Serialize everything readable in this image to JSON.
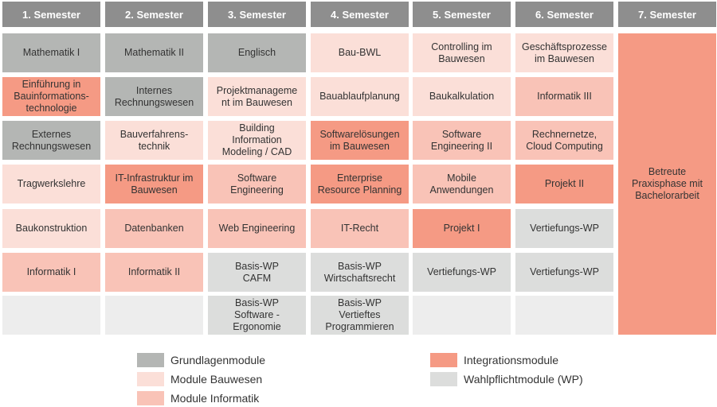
{
  "colors": {
    "Grundlagen": "#b4b6b4",
    "Bauwesen": "#fbdfd8",
    "Informatik": "#f9c3b7",
    "Integration": "#f59a84",
    "Wahlpflicht": "#dcdddc",
    "Empty": "#ededed",
    "Header": "#8e8e8e"
  },
  "semesters": [
    "1. Semester",
    "2. Semester",
    "3. Semester",
    "4. Semester",
    "5. Semester",
    "6. Semester",
    "7. Semester"
  ],
  "columns": [
    [
      {
        "text": "Mathematik I",
        "type": "Grundlagen"
      },
      {
        "text": "Einführung in\nBauinformations-\ntechnologie",
        "type": "Integration"
      },
      {
        "text": "Externes\nRechnungswesen",
        "type": "Grundlagen"
      },
      {
        "text": "Tragwerkslehre",
        "type": "Bauwesen"
      },
      {
        "text": "Baukonstruktion",
        "type": "Bauwesen"
      },
      {
        "text": "Informatik I",
        "type": "Informatik"
      },
      {
        "text": "",
        "type": "Empty"
      }
    ],
    [
      {
        "text": "Mathematik II",
        "type": "Grundlagen"
      },
      {
        "text": "Internes\nRechnungswesen",
        "type": "Grundlagen"
      },
      {
        "text": "Bauverfahrens-\ntechnik",
        "type": "Bauwesen"
      },
      {
        "text": "IT-Infrastruktur im\nBauwesen",
        "type": "Integration"
      },
      {
        "text": "Datenbanken",
        "type": "Informatik"
      },
      {
        "text": "Informatik II",
        "type": "Informatik"
      },
      {
        "text": "",
        "type": "Empty"
      }
    ],
    [
      {
        "text": "Englisch",
        "type": "Grundlagen"
      },
      {
        "text": "Projektmanageme\nnt im Bauwesen",
        "type": "Bauwesen"
      },
      {
        "text": "Building\nInformation\nModeling / CAD",
        "type": "Bauwesen"
      },
      {
        "text": "Software\nEngineering",
        "type": "Informatik"
      },
      {
        "text": "Web Engineering",
        "type": "Informatik"
      },
      {
        "text": "Basis-WP\nCAFM",
        "type": "Wahlpflicht"
      },
      {
        "text": "Basis-WP\nSoftware -\nErgonomie",
        "type": "Wahlpflicht"
      }
    ],
    [
      {
        "text": "Bau-BWL",
        "type": "Bauwesen"
      },
      {
        "text": "Bauablaufplanung",
        "type": "Bauwesen"
      },
      {
        "text": "Softwarelösungen\nim Bauwesen",
        "type": "Integration"
      },
      {
        "text": "Enterprise\nResource Planning",
        "type": "Integration"
      },
      {
        "text": "IT-Recht",
        "type": "Informatik"
      },
      {
        "text": "Basis-WP\nWirtschaftsrecht",
        "type": "Wahlpflicht"
      },
      {
        "text": "Basis-WP\nVertieftes\nProgrammieren",
        "type": "Wahlpflicht"
      }
    ],
    [
      {
        "text": "Controlling im\nBauwesen",
        "type": "Bauwesen"
      },
      {
        "text": "Baukalkulation",
        "type": "Bauwesen"
      },
      {
        "text": "Software\nEngineering II",
        "type": "Informatik"
      },
      {
        "text": "Mobile\nAnwendungen",
        "type": "Informatik"
      },
      {
        "text": "Projekt I",
        "type": "Integration"
      },
      {
        "text": "Vertiefungs-WP",
        "type": "Wahlpflicht"
      },
      {
        "text": "",
        "type": "Empty"
      }
    ],
    [
      {
        "text": "Geschäftsprozesse\nim Bauwesen",
        "type": "Bauwesen"
      },
      {
        "text": "Informatik III",
        "type": "Informatik"
      },
      {
        "text": "Rechnernetze,\nCloud Computing",
        "type": "Informatik"
      },
      {
        "text": "Projekt II",
        "type": "Integration"
      },
      {
        "text": "Vertiefungs-WP",
        "type": "Wahlpflicht"
      },
      {
        "text": "Vertiefungs-WP",
        "type": "Wahlpflicht"
      },
      {
        "text": "",
        "type": "Empty"
      }
    ]
  ],
  "final": {
    "text": "Betreute\nPraxisphase mit\nBachelorarbeit",
    "type": "Integration"
  },
  "legend": [
    {
      "label": "Grundlagenmodule",
      "type": "Grundlagen"
    },
    {
      "label": "Module Bauwesen",
      "type": "Bauwesen"
    },
    {
      "label": "Module Informatik",
      "type": "Informatik"
    },
    {
      "label": "Integrationsmodule",
      "type": "Integration"
    },
    {
      "label": "Wahlpflichtmodule (WP)",
      "type": "Wahlpflicht"
    }
  ]
}
